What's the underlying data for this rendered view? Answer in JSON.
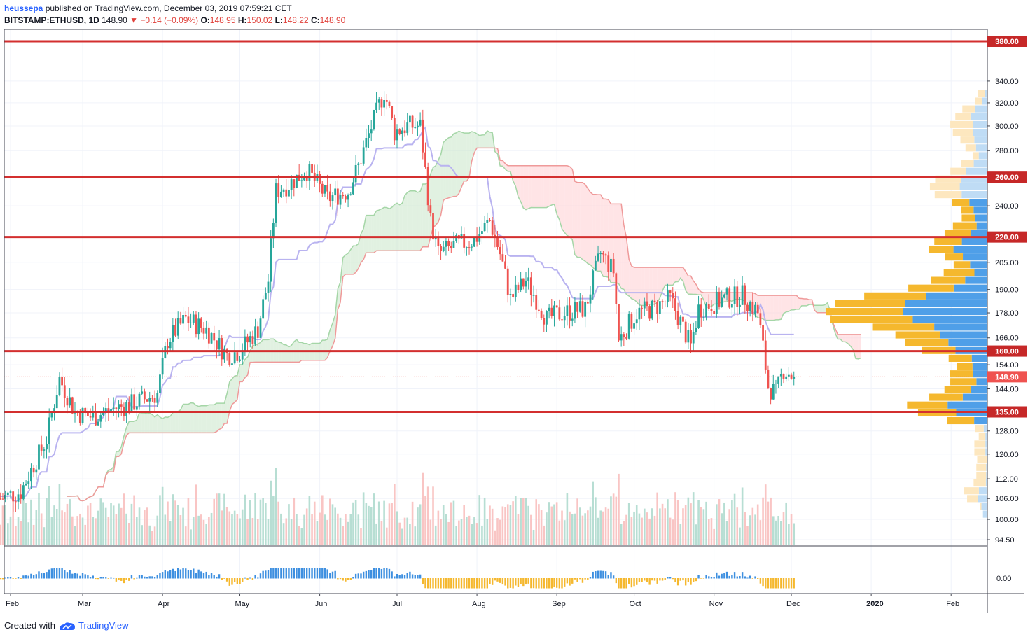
{
  "header": {
    "author": "heussepa",
    "published_text": "published on TradingView.com, December 03, 2019 07:59:21 CET",
    "symbol": "BITSTAMP:ETHUSD, 1D",
    "last": "148.90",
    "change": "▼ −0.14 (−0.09%)",
    "o_label": "O:",
    "o_value": "148.95",
    "h_label": "H:",
    "h_value": "150.02",
    "l_label": "L:",
    "l_value": "148.22",
    "c_label": "C:",
    "c_value": "148.90"
  },
  "footer": {
    "created_with": "Created with",
    "brand": "TradingView"
  },
  "colors": {
    "up": "#26a69a",
    "down": "#ef5350",
    "level_line": "#d32f2f",
    "tag_bg": "#c62828",
    "price_tag_bg": "#ef5350",
    "kumo_bull": "#c8e6c9",
    "kumo_bear": "#ffcdd2",
    "kijun": "#b9b3f0",
    "vpvr_up_hl": "#f5b82e",
    "vpvr_down_hl": "#4f9fe8"
  },
  "chart_data": {
    "type": "candlestick",
    "symbol": "ETHUSD",
    "interval": "1D",
    "y_axis_scale": "log",
    "y_ticks": [
      "340.00",
      "320.00",
      "300.00",
      "280.00",
      "240.00",
      "205.00",
      "190.00",
      "178.00",
      "166.00",
      "154.00",
      "144.00",
      "128.00",
      "120.00",
      "112.00",
      "106.00",
      "100.00",
      "94.50"
    ],
    "x_ticks": [
      "Feb",
      "Mar",
      "Apr",
      "May",
      "Jun",
      "Jul",
      "Aug",
      "Sep",
      "Oct",
      "Nov",
      "Dec",
      "2020",
      "Feb"
    ],
    "oscillator_tick": "0.00",
    "horizontal_levels": [
      {
        "value": 380,
        "label": "380.00"
      },
      {
        "value": 260,
        "label": "260.00"
      },
      {
        "value": 220,
        "label": "220.00"
      },
      {
        "value": 160,
        "label": "160.00"
      },
      {
        "value": 135,
        "label": "135.00"
      }
    ],
    "last_price_label": "148.90",
    "last_price": 148.9,
    "price_anchors": [
      {
        "date": "2019-01-28",
        "price": 106
      },
      {
        "date": "2019-02-05",
        "price": 108
      },
      {
        "date": "2019-02-15",
        "price": 125
      },
      {
        "date": "2019-02-20",
        "price": 148
      },
      {
        "date": "2019-02-26",
        "price": 135
      },
      {
        "date": "2019-03-05",
        "price": 133
      },
      {
        "date": "2019-03-12",
        "price": 136
      },
      {
        "date": "2019-03-20",
        "price": 138
      },
      {
        "date": "2019-03-30",
        "price": 142
      },
      {
        "date": "2019-04-03",
        "price": 165
      },
      {
        "date": "2019-04-10",
        "price": 175
      },
      {
        "date": "2019-04-18",
        "price": 170
      },
      {
        "date": "2019-04-26",
        "price": 158
      },
      {
        "date": "2019-05-01",
        "price": 160
      },
      {
        "date": "2019-05-08",
        "price": 170
      },
      {
        "date": "2019-05-12",
        "price": 195
      },
      {
        "date": "2019-05-15",
        "price": 250
      },
      {
        "date": "2019-05-20",
        "price": 255
      },
      {
        "date": "2019-05-27",
        "price": 265
      },
      {
        "date": "2019-06-04",
        "price": 245
      },
      {
        "date": "2019-06-12",
        "price": 250
      },
      {
        "date": "2019-06-16",
        "price": 268
      },
      {
        "date": "2019-06-22",
        "price": 305
      },
      {
        "date": "2019-06-26",
        "price": 330
      },
      {
        "date": "2019-06-30",
        "price": 295
      },
      {
        "date": "2019-07-05",
        "price": 300
      },
      {
        "date": "2019-07-10",
        "price": 300
      },
      {
        "date": "2019-07-14",
        "price": 230
      },
      {
        "date": "2019-07-17",
        "price": 210
      },
      {
        "date": "2019-07-24",
        "price": 215
      },
      {
        "date": "2019-07-31",
        "price": 218
      },
      {
        "date": "2019-08-06",
        "price": 230
      },
      {
        "date": "2019-08-10",
        "price": 210
      },
      {
        "date": "2019-08-14",
        "price": 185
      },
      {
        "date": "2019-08-20",
        "price": 195
      },
      {
        "date": "2019-08-28",
        "price": 175
      },
      {
        "date": "2019-09-03",
        "price": 178
      },
      {
        "date": "2019-09-12",
        "price": 180
      },
      {
        "date": "2019-09-18",
        "price": 210
      },
      {
        "date": "2019-09-23",
        "price": 200
      },
      {
        "date": "2019-09-25",
        "price": 165
      },
      {
        "date": "2019-10-02",
        "price": 178
      },
      {
        "date": "2019-10-08",
        "price": 180
      },
      {
        "date": "2019-10-15",
        "price": 185
      },
      {
        "date": "2019-10-23",
        "price": 162
      },
      {
        "date": "2019-10-26",
        "price": 180
      },
      {
        "date": "2019-11-05",
        "price": 185
      },
      {
        "date": "2019-11-12",
        "price": 187
      },
      {
        "date": "2019-11-18",
        "price": 178
      },
      {
        "date": "2019-11-22",
        "price": 145
      },
      {
        "date": "2019-11-25",
        "price": 142
      },
      {
        "date": "2019-11-28",
        "price": 152
      },
      {
        "date": "2019-12-02",
        "price": 148.9
      }
    ]
  }
}
